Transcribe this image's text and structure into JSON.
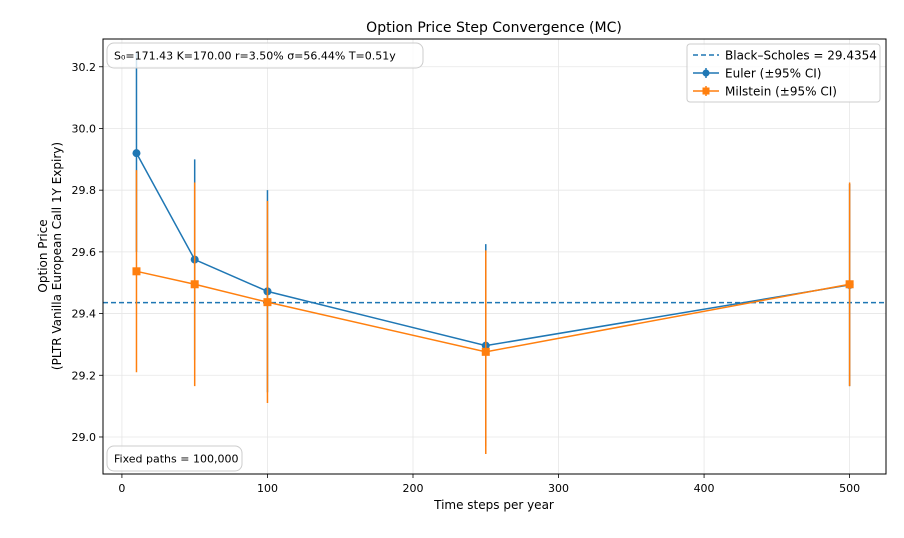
{
  "chart_data": {
    "type": "line",
    "title": "Option Price Step Convergence (MC)",
    "xlabel": "Time steps per year",
    "ylabel_line1": "Option Price",
    "ylabel_line2": "(PLTR Vanilla European Call 1Y Expiry)",
    "xlim": [
      -13,
      525
    ],
    "ylim": [
      28.88,
      30.29
    ],
    "xticks": [
      0,
      100,
      200,
      300,
      400,
      500
    ],
    "yticks": [
      29.0,
      29.2,
      29.4,
      29.6,
      29.8,
      30.0,
      30.2
    ],
    "grid": true,
    "legend_position": "top-right",
    "params_text": "S₀=171.43   K=170.00   r=3.50%   σ=56.44%   T=0.51y",
    "paths_text": "Fixed paths = 100,000",
    "reference": {
      "name": "Black–Scholes = 29.4354",
      "value": 29.4354,
      "color": "#1f77b4",
      "style": "dashed"
    },
    "series": [
      {
        "name": "Euler (±95% CI)",
        "color": "#1f77b4",
        "marker": "circle",
        "x": [
          10,
          50,
          100,
          250,
          500
        ],
        "y": [
          29.92,
          29.575,
          29.472,
          29.296,
          29.493
        ],
        "ci_low": [
          29.6,
          29.25,
          29.145,
          28.97,
          29.165
        ],
        "ci_high": [
          30.245,
          29.9,
          29.8,
          29.625,
          29.82
        ]
      },
      {
        "name": "Milstein (±95% CI)",
        "color": "#ff7f0e",
        "marker": "square",
        "x": [
          10,
          50,
          100,
          250,
          500
        ],
        "y": [
          29.537,
          29.495,
          29.437,
          29.276,
          29.495
        ],
        "ci_low": [
          29.21,
          29.165,
          29.11,
          28.945,
          29.165
        ],
        "ci_high": [
          29.865,
          29.825,
          29.765,
          29.605,
          29.825
        ]
      }
    ]
  }
}
